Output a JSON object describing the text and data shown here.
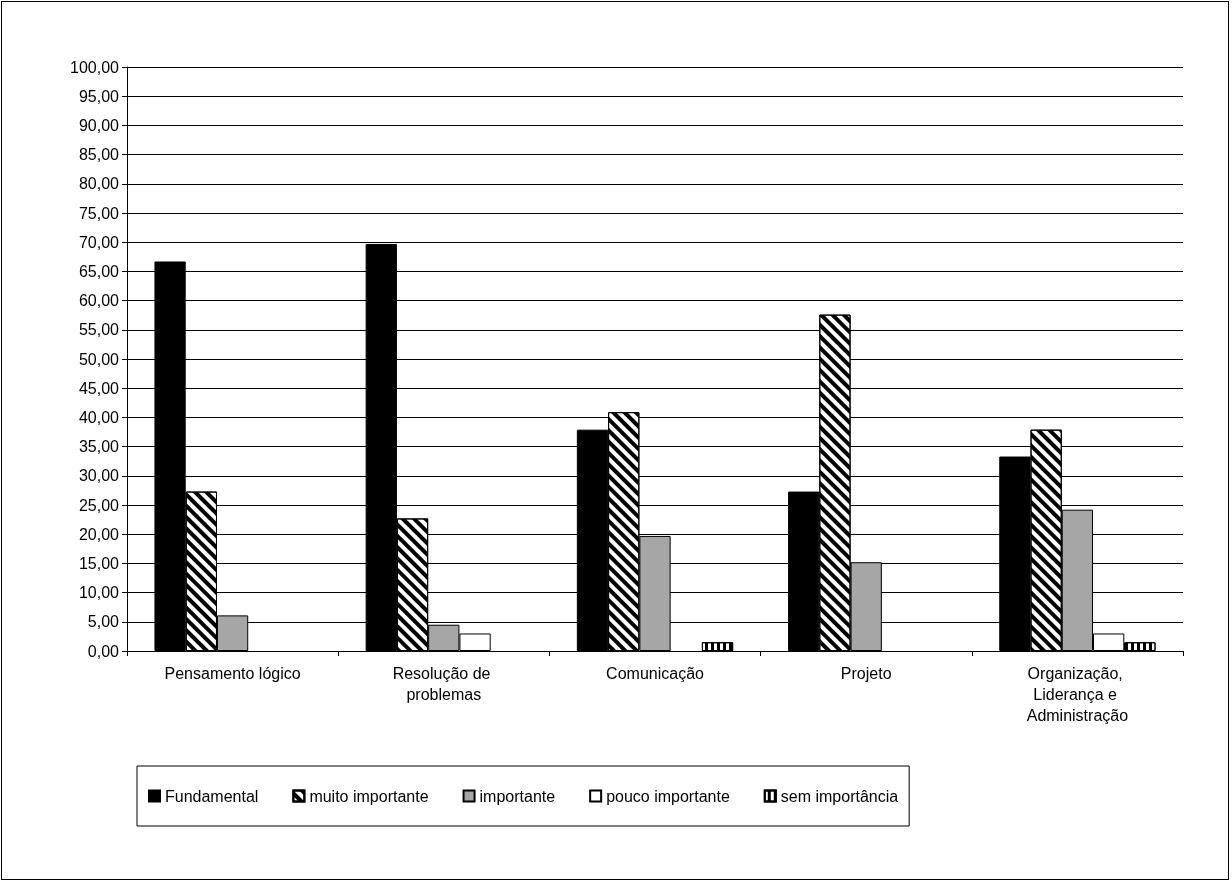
{
  "chart_data": {
    "type": "bar",
    "categories": [
      "Pensamento lógico",
      "Resolução de problemas",
      "Comunicação",
      "Projeto",
      "Organização, Liderança e Administração"
    ],
    "series": [
      {
        "name": "Fundamental",
        "color": "#000000",
        "values": [
          66.7,
          69.7,
          37.9,
          27.3,
          33.3
        ]
      },
      {
        "name": "muito importante",
        "color": "#ffffff",
        "values": [
          27.3,
          22.7,
          40.9,
          57.6,
          37.9
        ]
      },
      {
        "name": "importante",
        "color": "#a6a6a6",
        "values": [
          6.1,
          4.5,
          19.7,
          15.2,
          24.2
        ]
      },
      {
        "name": "pouco importante",
        "color": "#ffffff",
        "values": [
          0,
          3.0,
          0,
          0,
          3.0
        ]
      },
      {
        "name": "sem importância",
        "color": "#ffffff",
        "values": [
          0,
          0,
          1.5,
          0,
          1.5
        ]
      }
    ],
    "ylim": [
      0,
      100
    ],
    "yticks": [
      {
        "value": 0,
        "label": "0,00"
      },
      {
        "value": 5,
        "label": "5,00"
      },
      {
        "value": 10,
        "label": "10,00"
      },
      {
        "value": 15,
        "label": "15,00"
      },
      {
        "value": 20,
        "label": "20,00"
      },
      {
        "value": 25,
        "label": "25,00"
      },
      {
        "value": 30,
        "label": "30,00"
      },
      {
        "value": 35,
        "label": "35,00"
      },
      {
        "value": 40,
        "label": "40,00"
      },
      {
        "value": 45,
        "label": "45,00"
      },
      {
        "value": 50,
        "label": "50,00"
      },
      {
        "value": 55,
        "label": "55,00"
      },
      {
        "value": 60,
        "label": "60,00"
      },
      {
        "value": 65,
        "label": "65,00"
      },
      {
        "value": 70,
        "label": "70,00"
      },
      {
        "value": 75,
        "label": "75,00"
      },
      {
        "value": 80,
        "label": "80,00"
      },
      {
        "value": 85,
        "label": "85,00"
      },
      {
        "value": 90,
        "label": "90,00"
      },
      {
        "value": 95,
        "label": "95,00"
      },
      {
        "value": 100,
        "label": "100,00"
      }
    ],
    "grid": "y",
    "legend": "bottom"
  }
}
